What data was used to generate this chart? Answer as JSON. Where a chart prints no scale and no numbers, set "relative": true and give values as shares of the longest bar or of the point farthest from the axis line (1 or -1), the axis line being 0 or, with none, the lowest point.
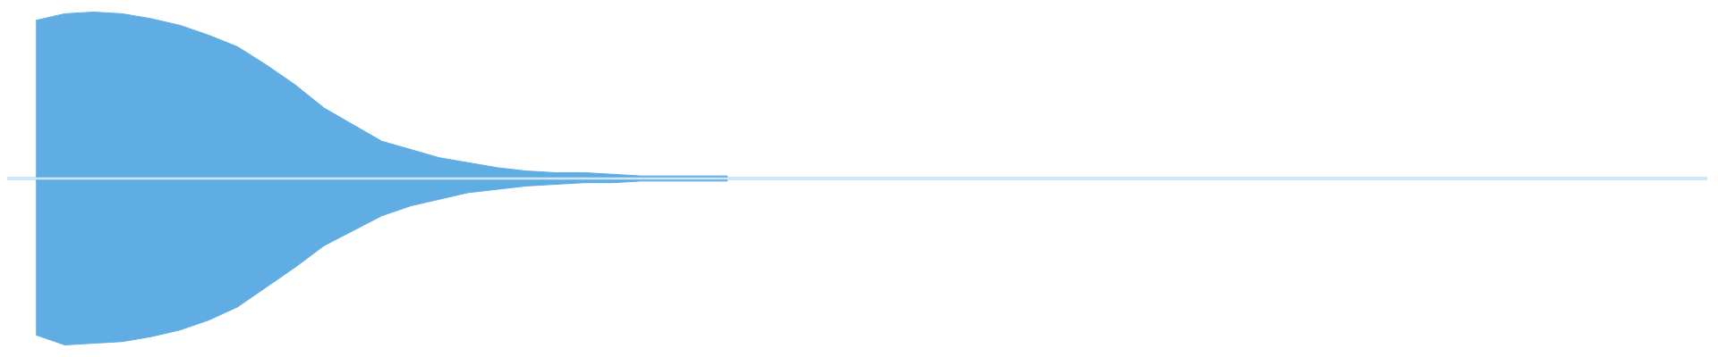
{
  "chart_data": [
    {
      "type": "area",
      "relative": true,
      "categories": [
        null,
        null,
        null,
        null,
        null,
        null,
        null,
        null,
        null,
        null,
        null,
        null,
        null,
        null,
        null,
        null,
        null,
        null,
        null,
        null,
        null,
        null,
        null,
        null,
        null,
        null,
        null,
        null,
        null,
        null,
        null,
        null,
        null,
        null,
        null,
        null,
        null,
        null,
        null,
        null,
        null,
        null,
        null,
        null,
        null,
        null,
        null,
        null,
        null,
        null,
        null,
        null,
        null,
        null,
        null,
        null,
        null,
        null,
        null,
        null
      ],
      "series": [
        {
          "color": "#5fade3",
          "values": [
            null,
            0.95,
            0.99,
            1,
            0.99,
            0.96,
            0.92,
            0.86,
            0.79,
            0.68,
            0.56,
            0.42,
            0.32,
            0.22,
            0.17,
            0.12,
            0.09,
            0.06,
            0.04,
            0.03,
            0.03,
            0.02,
            0.01,
            0.01,
            0.01,
            0.01,
            null,
            null,
            null,
            null,
            null,
            null,
            null,
            null,
            null,
            null,
            null,
            null,
            null,
            null,
            null,
            null,
            null,
            null,
            null,
            null,
            null,
            null,
            null,
            null,
            null,
            null,
            null,
            null,
            null,
            null,
            null,
            null,
            null,
            null
          ]
        }
      ]
    },
    {
      "type": "area",
      "relative": true,
      "categories": [
        null,
        null,
        null,
        null,
        null,
        null,
        null,
        null,
        null,
        null,
        null,
        null,
        null,
        null,
        null,
        null,
        null,
        null,
        null,
        null,
        null,
        null,
        null,
        null,
        null,
        null,
        null,
        null,
        null,
        null,
        null,
        null,
        null,
        null,
        null,
        null,
        null,
        null,
        null,
        null,
        null,
        null,
        null,
        null,
        null,
        null,
        null,
        null,
        null,
        null,
        null,
        null,
        null,
        null,
        null,
        null,
        null,
        null,
        null,
        null
      ],
      "series": [
        {
          "color": "#5fade3",
          "values": [
            null,
            -0.94,
            -1,
            -0.99,
            -0.98,
            -0.95,
            -0.91,
            -0.85,
            -0.77,
            -0.65,
            -0.53,
            -0.4,
            -0.31,
            -0.22,
            -0.16,
            -0.12,
            -0.08,
            -0.06,
            -0.04,
            -0.03,
            -0.02,
            -0.02,
            -0.01,
            -0.01,
            -0.01,
            -0.01,
            null,
            null,
            null,
            null,
            null,
            null,
            null,
            null,
            null,
            null,
            null,
            null,
            null,
            null,
            null,
            null,
            null,
            null,
            null,
            null,
            null,
            null,
            null,
            null,
            null,
            null,
            null,
            null,
            null,
            null,
            null,
            null,
            null,
            null
          ]
        }
      ]
    }
  ]
}
